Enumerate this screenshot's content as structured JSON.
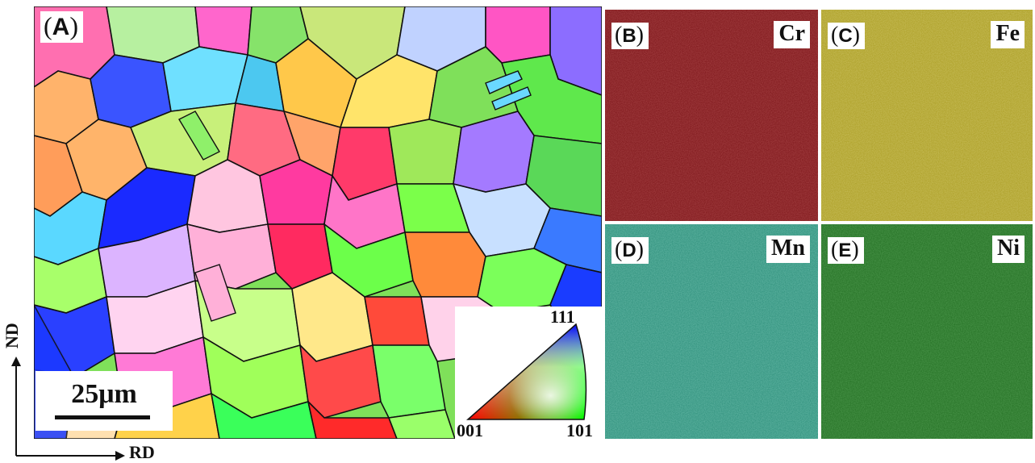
{
  "panel_a": {
    "label_letter": "A",
    "scale_bar": "25μm",
    "ipf_key": {
      "top": "111",
      "left": "001",
      "right": "101"
    }
  },
  "axes": {
    "vertical": "ND",
    "horizontal": "RD"
  },
  "maps": [
    {
      "id": "b",
      "letter": "B",
      "element": "Cr",
      "color": "#7a1216",
      "speckle": "#a52a2a"
    },
    {
      "id": "c",
      "letter": "C",
      "element": "Fe",
      "color": "#a89a1e",
      "speckle": "#d0c650"
    },
    {
      "id": "d",
      "letter": "D",
      "element": "Mn",
      "color": "#2a8c78",
      "speckle": "#55bfa8"
    },
    {
      "id": "e",
      "letter": "E",
      "element": "Ni",
      "color": "#1e6a1e",
      "speckle": "#3a9a3a"
    }
  ]
}
